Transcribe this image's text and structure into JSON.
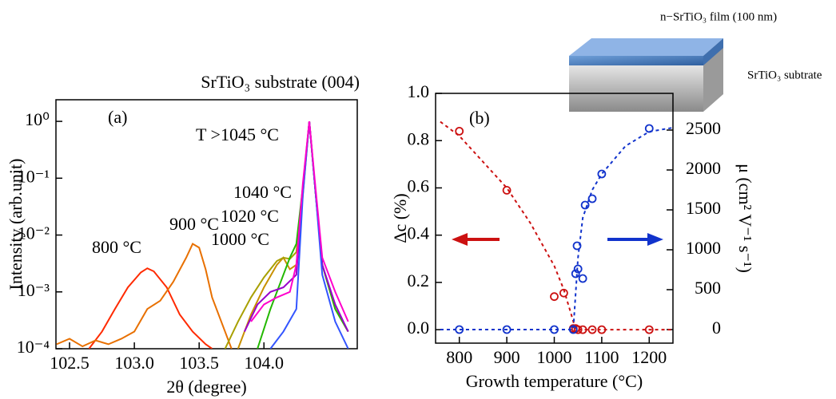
{
  "chart_data": [
    {
      "type": "line",
      "panel_label": "(a)",
      "xlabel": "2θ (degree)",
      "ylabel": "Intensity (arb.unit)",
      "ylog": true,
      "annotations": [
        "SrTiO₃ substrate (004)",
        "T >1045 °C"
      ],
      "xlim": [
        102.395,
        104.72
      ],
      "xticks": [
        102.5,
        {
          "value": 103.0,
          "label": "103.0"
        },
        103.5,
        {
          "value": 104.0,
          "label": "104.0"
        }
      ],
      "ylim": [
        0.0001,
        2.4
      ],
      "yticks": [
        {
          "value": 0.0001,
          "label": "10⁻⁴"
        },
        {
          "value": 0.001,
          "label": "10⁻³"
        },
        {
          "value": 0.01,
          "label": "10⁻²"
        },
        {
          "value": 0.1,
          "label": "10⁻¹"
        },
        {
          "value": 1,
          "label": "10⁰"
        }
      ],
      "series": [
        {
          "name": "800 °C",
          "color": "#ff2a00",
          "x": [
            102.65,
            102.75,
            102.85,
            102.95,
            103.05,
            103.1,
            103.15,
            103.25,
            103.35,
            103.45,
            103.55,
            103.6
          ],
          "values": [
            0.0001,
            0.0002,
            0.0005,
            0.0012,
            0.0022,
            0.0026,
            0.0023,
            0.0012,
            0.0004,
            0.0002,
            0.00012,
            0.0001
          ]
        },
        {
          "name": "900 °C",
          "color": "#e87000",
          "x": [
            102.4,
            102.5,
            102.6,
            102.7,
            102.8,
            102.9,
            103.0,
            103.1,
            103.2,
            103.3,
            103.4,
            103.45,
            103.5,
            103.55,
            103.6,
            103.7,
            103.75
          ],
          "values": [
            0.00012,
            0.00015,
            0.00011,
            0.00014,
            0.00012,
            0.00015,
            0.0002,
            0.0005,
            0.0007,
            0.0015,
            0.004,
            0.007,
            0.006,
            0.0025,
            0.0008,
            0.0002,
            0.0001
          ]
        },
        {
          "name": "1000 °C",
          "color": "#c89000",
          "x": [
            103.8,
            103.9,
            104.0,
            104.1,
            104.15,
            104.2,
            104.25,
            104.3,
            104.35,
            104.4,
            104.45,
            104.55,
            104.65
          ],
          "values": [
            0.0001,
            0.0004,
            0.0012,
            0.003,
            0.004,
            0.0025,
            0.003,
            0.05,
            1,
            0.05,
            0.003,
            0.0005,
            0.0002
          ]
        },
        {
          "name": "1020 °C",
          "color": "#a8a000",
          "x": [
            103.7,
            103.8,
            103.9,
            104.0,
            104.1,
            104.15,
            104.2,
            104.25,
            104.3,
            104.35,
            104.4,
            104.45,
            104.55,
            104.65
          ],
          "values": [
            0.0001,
            0.0003,
            0.0008,
            0.0018,
            0.0035,
            0.004,
            0.0038,
            0.005,
            0.06,
            1,
            0.05,
            0.003,
            0.0005,
            0.0002
          ]
        },
        {
          "name": "1040 °C",
          "color": "#22b800",
          "x": [
            103.95,
            104.05,
            104.15,
            104.2,
            104.25,
            104.3,
            104.35,
            104.4,
            104.45,
            104.55,
            104.65
          ],
          "values": [
            0.0001,
            0.0005,
            0.002,
            0.004,
            0.007,
            0.07,
            1,
            0.05,
            0.003,
            0.0005,
            0.0002
          ]
        },
        {
          "color": "#9900cc",
          "x": [
            103.85,
            103.95,
            104.05,
            104.15,
            104.25,
            104.3,
            104.35,
            104.4,
            104.45,
            104.55,
            104.65
          ],
          "values": [
            0.0002,
            0.0006,
            0.001,
            0.0012,
            0.002,
            0.06,
            1,
            0.05,
            0.003,
            0.0006,
            0.0002
          ]
        },
        {
          "color": "#3355ff",
          "x": [
            104.05,
            104.15,
            104.25,
            104.3,
            104.35,
            104.4,
            104.45,
            104.55,
            104.65
          ],
          "values": [
            0.0001,
            0.0002,
            0.0005,
            0.05,
            1,
            0.05,
            0.002,
            0.0003,
            0.0001
          ]
        },
        {
          "color": "#ff00cc",
          "x": [
            103.9,
            104.0,
            104.1,
            104.2,
            104.25,
            104.3,
            104.35,
            104.4,
            104.45,
            104.55,
            104.65
          ],
          "values": [
            0.0003,
            0.0006,
            0.0008,
            0.001,
            0.003,
            0.08,
            1,
            0.06,
            0.004,
            0.001,
            0.0003
          ]
        }
      ]
    },
    {
      "type": "scatter",
      "panel_label": "(b)",
      "xlabel": "Growth temperature (°C)",
      "ylabel": "Δc (%)",
      "y2label": "μ (cm² V⁻¹ s⁻¹)",
      "annotations": [
        "n−SrTiO₃ film  (100 nm)",
        "SrTiO₃ subtrate"
      ],
      "xlim": [
        750,
        1250
      ],
      "xticks": [
        800,
        900,
        1000,
        1100,
        1200
      ],
      "ylim": [
        -0.057,
        1.0
      ],
      "yticks": [
        {
          "value": 0,
          "label": "0.0"
        },
        {
          "value": 0.2,
          "label": "0.2"
        },
        {
          "value": 0.4,
          "label": "0.4"
        },
        {
          "value": 0.6,
          "label": "0.6"
        },
        {
          "value": 0.8,
          "label": "0.8"
        },
        {
          "value": 1,
          "label": "1.0"
        }
      ],
      "y2lim": [
        -170,
        2960
      ],
      "y2ticks": [
        0,
        500,
        1000,
        1500,
        2000,
        2500
      ],
      "series": [
        {
          "color": "#cc1111",
          "style": "markers",
          "x": [
            800,
            900,
            1000,
            1020,
            1040,
            1045,
            1050,
            1060,
            1080,
            1100,
            1200
          ],
          "values": [
            0.84,
            0.59,
            0.14,
            0.155,
            0.005,
            0.005,
            0,
            0,
            0,
            0,
            0
          ]
        },
        {
          "color": "#cc1111",
          "style": "dashed",
          "x": [
            760,
            800,
            850,
            900,
            950,
            1000,
            1020,
            1035,
            1045,
            1100,
            1150,
            1200,
            1250
          ],
          "values": [
            0.88,
            0.82,
            0.71,
            0.6,
            0.45,
            0.27,
            0.17,
            0.07,
            0,
            0,
            0,
            0,
            0
          ]
        },
        {
          "color": "#1133cc",
          "style": "markers",
          "axis": "y2",
          "x": [
            800,
            900,
            1000,
            1040,
            1045,
            1048,
            1050,
            1060,
            1065,
            1080,
            1100,
            1200
          ],
          "values": [
            0,
            0,
            0,
            0,
            700,
            1050,
            760,
            640,
            1560,
            1640,
            1950,
            2520
          ]
        },
        {
          "color": "#1133cc",
          "style": "dashed",
          "axis": "y2",
          "x": [
            760,
            900,
            1000,
            1040,
            1045,
            1050,
            1060,
            1080,
            1100,
            1150,
            1200,
            1250
          ],
          "values": [
            0,
            0,
            0,
            0,
            450,
            900,
            1400,
            1750,
            1950,
            2300,
            2480,
            2530
          ]
        }
      ]
    }
  ]
}
